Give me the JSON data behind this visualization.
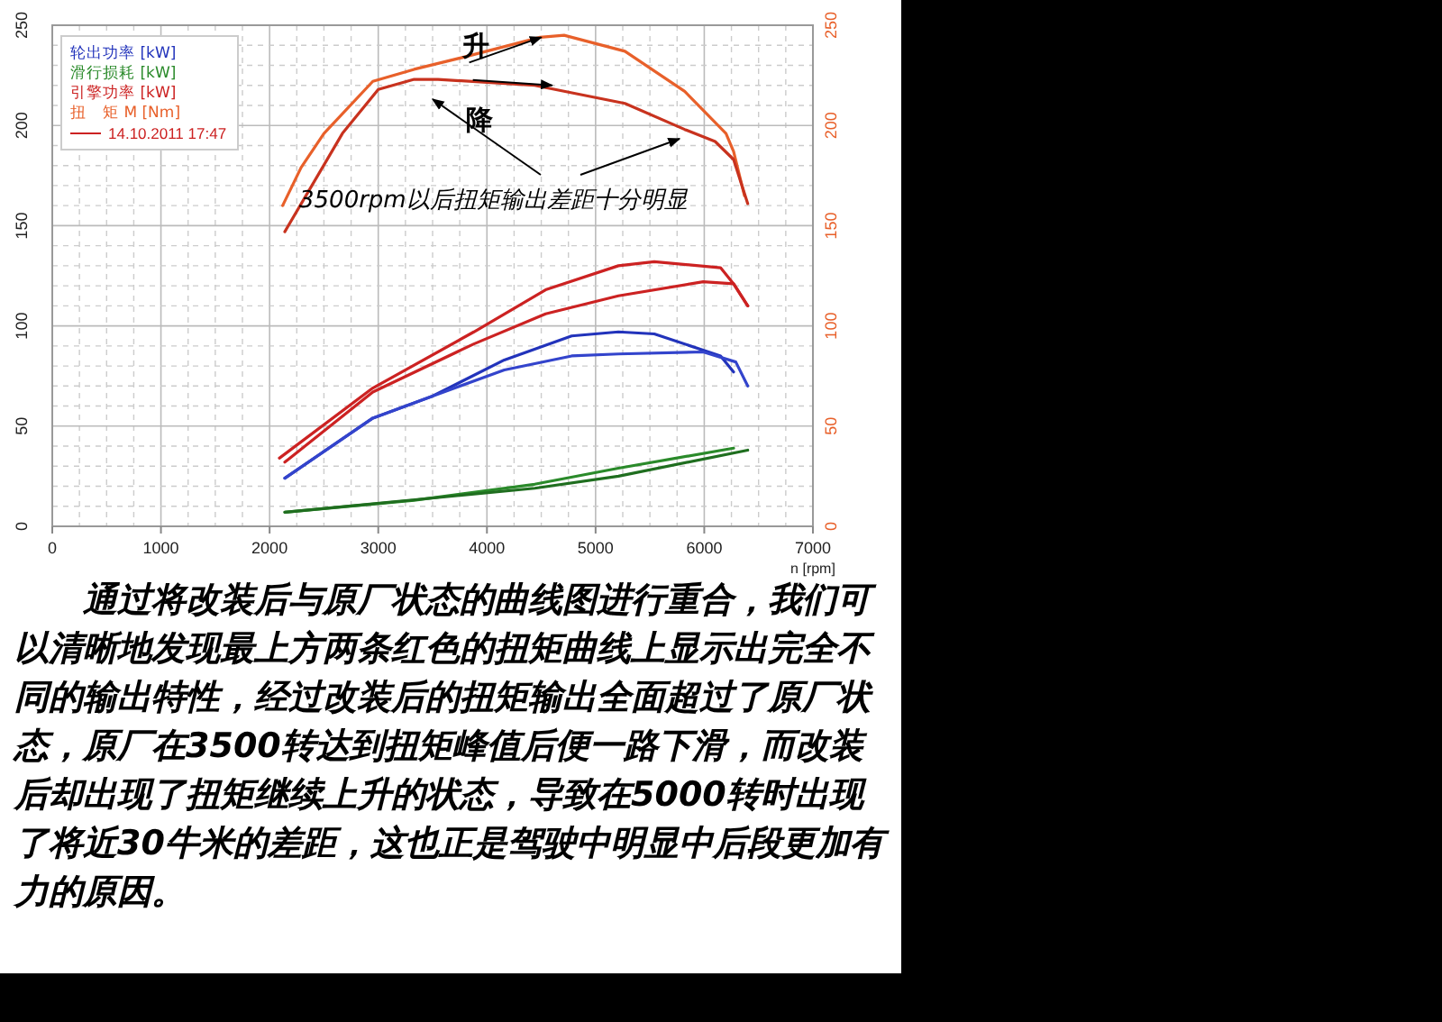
{
  "chart_data": {
    "type": "line",
    "xlabel": "n [rpm]",
    "xlim": [
      0,
      7000
    ],
    "xticks": [
      0,
      1000,
      2000,
      3000,
      4000,
      5000,
      6000,
      7000
    ],
    "ylim": [
      0,
      250
    ],
    "yticks": [
      0,
      50,
      100,
      150,
      200,
      250
    ],
    "y2lim": [
      0,
      250
    ],
    "y2ticks": [
      0,
      50,
      100,
      150,
      200,
      250
    ],
    "grid": true,
    "legend": "top left",
    "line_style": "solid",
    "marker": "none",
    "series": [
      {
        "name": "轮出功率 [kW]",
        "color": "#2233bb",
        "x": [
          2140,
          2950,
          3500,
          4160,
          4780,
          5210,
          5540,
          6150,
          6270
        ],
        "values": [
          24,
          54,
          65,
          83,
          95,
          97,
          96,
          85,
          77
        ]
      },
      {
        "color": "#3344cc",
        "x": [
          2140,
          2950,
          3500,
          4160,
          4780,
          5210,
          5990,
          6290,
          6400
        ],
        "values": [
          24,
          54,
          65,
          78,
          85,
          86,
          87,
          82,
          70
        ]
      },
      {
        "name": "滑行损耗 [kW]",
        "color": "#2a8a2a",
        "x": [
          2140,
          3330,
          4440,
          5210,
          6270
        ],
        "values": [
          7,
          13,
          21,
          29,
          39
        ]
      },
      {
        "color": "#1f6e1f",
        "x": [
          2140,
          4440,
          5210,
          6400
        ],
        "values": [
          7,
          19,
          25,
          38
        ]
      },
      {
        "name": "引擎功率 [kW]",
        "color": "#cc2222",
        "x": [
          2090,
          2950,
          3880,
          4540,
          5210,
          5540,
          6150,
          6270,
          6400
        ],
        "values": [
          34,
          69,
          97,
          118,
          130,
          132,
          129,
          121,
          110
        ]
      },
      {
        "color": "#cc2222",
        "x": [
          2140,
          2950,
          3880,
          4540,
          5210,
          5990,
          6270,
          6400
        ],
        "values": [
          32,
          67,
          91,
          106,
          115,
          122,
          121,
          110
        ]
      },
      {
        "name": "扭　矩 M [Nm]",
        "color": "#e8602a",
        "axis": "y2",
        "x": [
          2120,
          2290,
          2500,
          2950,
          3330,
          3780,
          4490,
          4710,
          5270,
          5820,
          6200,
          6270,
          6370
        ],
        "values": [
          160,
          179,
          196,
          222,
          228,
          234,
          244,
          245,
          237,
          217,
          196,
          187,
          165
        ]
      },
      {
        "color": "#c8321e",
        "axis": "y2",
        "x": [
          2140,
          2670,
          3000,
          3330,
          3550,
          4440,
          5270,
          5820,
          6100,
          6270,
          6400
        ],
        "values": [
          147,
          196,
          218,
          223,
          223,
          220,
          211,
          198,
          192,
          183,
          161
        ]
      }
    ],
    "annotations": [
      "14.10.2011 17:47",
      {
        "text": "升",
        "x": 4500,
        "y": 244
      },
      {
        "text": "降",
        "x": 4600,
        "y": 220
      },
      "3500rpm以后扭矩输出差距十分明显",
      "通过将改装后与原厂状态的曲线图进行重合，我们可以清晰地发现最上方两条红色的扭矩曲线上显示出完全不同的输出特性，经过改装后的扭矩输出全面超过了原厂状态，原厂在3500转达到扭矩峰值后便一路下滑，而改装后却出现了扭矩继续上升的状态，导致在5000转时出现了将近30牛米的差距，这也正是驾驶中明显中后段更加有力的原因。"
    ]
  }
}
